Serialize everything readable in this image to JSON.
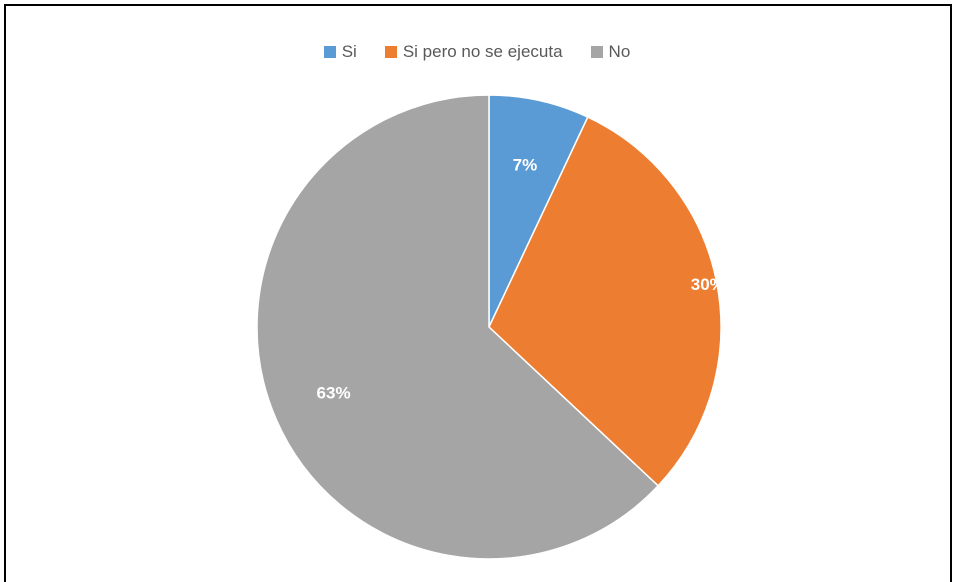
{
  "chart_data": {
    "type": "pie",
    "categories": [
      "Si",
      "Si pero no se ejecuta",
      "No"
    ],
    "values": [
      7,
      30,
      63
    ],
    "labels": [
      "7%",
      "30%",
      "63%"
    ],
    "colors": [
      "#5B9BD5",
      "#ED7D31",
      "#A5A5A5"
    ],
    "legend": "top",
    "title": ""
  }
}
